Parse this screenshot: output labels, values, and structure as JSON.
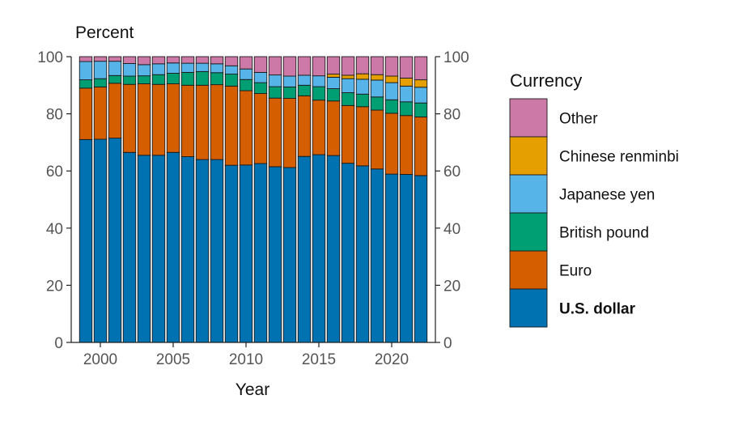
{
  "chart_data": {
    "type": "bar",
    "stacked": true,
    "ylabel": "Percent",
    "xlabel": "Year",
    "ylim": [
      0,
      100
    ],
    "xlim": [
      1998,
      2023
    ],
    "yticks": [
      0,
      20,
      40,
      60,
      80,
      100
    ],
    "xticks": [
      2000,
      2005,
      2010,
      2015,
      2020
    ],
    "secondary_y_axis": true,
    "legend_position": "right",
    "legend_title": "Currency",
    "x": [
      1999,
      2000,
      2001,
      2002,
      2003,
      2004,
      2005,
      2006,
      2007,
      2008,
      2009,
      2010,
      2011,
      2012,
      2013,
      2014,
      2015,
      2016,
      2017,
      2018,
      2019,
      2020,
      2021,
      2022
    ],
    "series": [
      {
        "name": "U.S. dollar",
        "color": "#0072B2",
        "bold": true,
        "values": [
          71.0,
          71.1,
          71.5,
          66.5,
          65.5,
          65.5,
          66.5,
          65.0,
          64.0,
          64.0,
          62.0,
          62.1,
          62.6,
          61.5,
          61.2,
          65.1,
          65.7,
          65.4,
          62.7,
          61.8,
          60.7,
          58.9,
          58.8,
          58.4
        ]
      },
      {
        "name": "Euro",
        "color": "#D55E00",
        "values": [
          18.0,
          18.3,
          19.2,
          23.8,
          25.0,
          24.8,
          24.0,
          25.0,
          26.0,
          26.2,
          27.7,
          26.0,
          24.5,
          24.0,
          24.2,
          21.2,
          19.1,
          19.1,
          20.2,
          20.7,
          20.6,
          21.3,
          20.6,
          20.5
        ]
      },
      {
        "name": "British pound",
        "color": "#009E73",
        "values": [
          2.9,
          2.9,
          2.7,
          2.9,
          2.8,
          3.4,
          3.7,
          4.5,
          4.8,
          4.2,
          4.2,
          3.9,
          3.8,
          4.0,
          4.0,
          3.7,
          4.7,
          4.3,
          4.5,
          4.4,
          4.6,
          4.7,
          4.8,
          4.9
        ]
      },
      {
        "name": "Japanese yen",
        "color": "#56B4E9",
        "values": [
          6.4,
          6.1,
          5.0,
          4.4,
          3.9,
          3.8,
          3.6,
          3.2,
          2.9,
          3.1,
          2.9,
          3.7,
          3.6,
          4.1,
          3.8,
          3.5,
          3.8,
          4.0,
          4.9,
          5.2,
          5.9,
          6.0,
          5.5,
          5.5
        ]
      },
      {
        "name": "Chinese renminbi",
        "color": "#E69F00",
        "values": [
          0,
          0,
          0,
          0,
          0,
          0,
          0,
          0,
          0,
          0,
          0,
          0,
          0,
          0,
          0,
          0,
          0,
          1.1,
          1.2,
          1.9,
          1.9,
          2.3,
          2.8,
          2.6
        ]
      },
      {
        "name": "Other",
        "color": "#CC79A7",
        "values": [
          1.7,
          1.6,
          1.6,
          2.4,
          2.8,
          2.5,
          2.2,
          2.3,
          2.3,
          2.5,
          3.2,
          4.3,
          5.5,
          6.4,
          6.8,
          6.5,
          6.7,
          6.1,
          6.5,
          6.0,
          6.3,
          6.8,
          7.5,
          8.1
        ]
      }
    ]
  }
}
